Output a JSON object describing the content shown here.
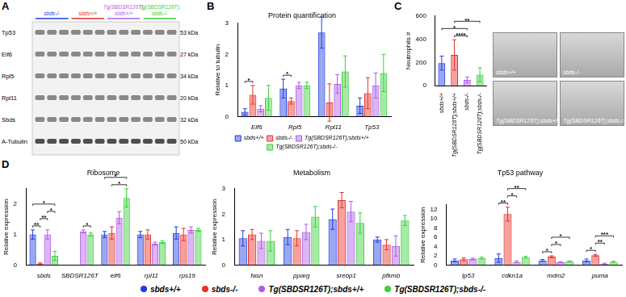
{
  "panel_labels": [
    "A",
    "B",
    "C",
    "D"
  ],
  "blot": {
    "groups": [
      {
        "label": "sbds-/-",
        "color": "#1f3ce0"
      },
      {
        "label": "sbds+/+",
        "color": "#e8312a"
      },
      {
        "label": "Tg(SBDSR126T);sbds+/+",
        "color": "#b05ce6"
      },
      {
        "label": "Tg(SBDSR126T);sbds-/-",
        "color": "#3ccf3c"
      }
    ],
    "rows": [
      {
        "protein": "Tp53",
        "size": "53 kDa"
      },
      {
        "protein": "Eif6",
        "size": "27 kDa"
      },
      {
        "protein": "Rpl5",
        "size": "34 kDa"
      },
      {
        "protein": "Rpl11",
        "size": "20 kDa"
      },
      {
        "protein": "Sbds",
        "size": "32 kDa"
      },
      {
        "protein": "A-Tubulin",
        "size": "50 kDa"
      }
    ]
  },
  "fish_images": {
    "labels": [
      "sbds+/+",
      "sbds-/-",
      "Tg(SBDSR126T);sbds+/+",
      "Tg(SBDSR126T);sbds-/-"
    ]
  },
  "chart_data": [
    {
      "type": "bar",
      "title": "Protein quantification",
      "y_label": "Relative to tubulin",
      "categories": [
        "Eif6",
        "Rpl5",
        "Rpl11",
        "Tp53"
      ],
      "series": [
        {
          "name": "sbds+/+",
          "color": "#1f3ce0",
          "values": [
            0.15,
            0.9,
            2.7,
            0.35
          ],
          "errors": [
            0.1,
            0.3,
            0.5,
            0.25
          ]
        },
        {
          "name": "sbds-/-",
          "color": "#e8312a",
          "values": [
            0.7,
            0.5,
            0.45,
            0.75
          ],
          "errors": [
            0.3,
            0.1,
            0.6,
            0.5
          ]
        },
        {
          "name": "Tg(SBDSR126T);sbds+/+",
          "color": "#b05ce6",
          "values": [
            0.25,
            1.0,
            1.05,
            1.0
          ],
          "errors": [
            0.1,
            0.1,
            0.3,
            0.4
          ]
        },
        {
          "name": "Tg(SBDSR126T);sbds-/-",
          "color": "#3ccf3c",
          "values": [
            0.6,
            1.0,
            1.45,
            1.4
          ],
          "errors": [
            0.4,
            0.1,
            0.5,
            0.6
          ]
        }
      ],
      "ylim": [
        0,
        3
      ],
      "yticks": [
        0,
        1,
        2,
        3
      ],
      "grid": false,
      "legend": "bottom",
      "significance": [
        {
          "category": "Eif6",
          "between": [
            "sbds+/+",
            "sbds-/-"
          ],
          "label": "*"
        },
        {
          "category": "Rpl5",
          "between": [
            "sbds+/+",
            "sbds-/-"
          ],
          "label": "*"
        }
      ]
    },
    {
      "type": "bar",
      "y_label": "Neutrophils #",
      "categories": [
        "sbds+/+",
        "Tg(SBDSR126T);sbds+/+",
        "sbds-/-",
        "Tg(SBDSR126T);sbds-/-"
      ],
      "values": [
        195,
        265,
        50,
        95
      ],
      "errors": [
        60,
        130,
        25,
        60
      ],
      "colors": [
        "#1f3ce0",
        "#e8312a",
        "#b05ce6",
        "#3ccf3c"
      ],
      "ylim": [
        0,
        600
      ],
      "yticks": [
        0,
        200,
        400,
        600
      ],
      "grid": false,
      "significance": [
        {
          "between": [
            "Tg(SBDSR126T);sbds+/+",
            "sbds-/-"
          ],
          "label": "****"
        },
        {
          "between": [
            "sbds+/+",
            "sbds-/-"
          ],
          "label": "*"
        },
        {
          "between": [
            "Tg(SBDSR126T);sbds+/+",
            "Tg(SBDSR126T);sbds-/-"
          ],
          "label": "**"
        }
      ]
    },
    {
      "type": "bar",
      "title": "Ribosome",
      "y_label": "Relative expression",
      "categories": [
        "sbds",
        "SBDSR126T",
        "eif6",
        "rpl11",
        "rps19"
      ],
      "series": [
        {
          "name": "sbds+/+",
          "color": "#1f3ce0",
          "values": [
            1.0,
            null,
            1.0,
            1.0,
            1.05
          ],
          "errors": [
            0.15,
            null,
            0.1,
            0.1,
            0.2
          ]
        },
        {
          "name": "sbds-/-",
          "color": "#e8312a",
          "values": [
            0.05,
            null,
            1.05,
            1.0,
            1.0
          ],
          "errors": [
            0.02,
            null,
            0.2,
            0.15,
            0.2
          ]
        },
        {
          "name": "Tg(SBDSR126T);sbds+/+",
          "color": "#b05ce6",
          "values": [
            1.0,
            1.1,
            1.55,
            0.7,
            1.15
          ],
          "errors": [
            0.15,
            0.05,
            0.2,
            0.05,
            0.1
          ]
        },
        {
          "name": "Tg(SBDSR126T);sbds-/-",
          "color": "#3ccf3c",
          "values": [
            0.3,
            1.0,
            2.2,
            0.75,
            1.15
          ],
          "errors": [
            0.15,
            0.05,
            0.3,
            0.05,
            0.05
          ]
        }
      ],
      "ylim": [
        0,
        2.5
      ],
      "yticks": [
        0,
        1,
        2
      ],
      "grid": false,
      "significance": [
        {
          "category": "sbds",
          "between": [
            "sbds+/+",
            "sbds-/-"
          ],
          "label": "**"
        },
        {
          "category": "sbds",
          "between": [
            "sbds-/-",
            "Tg(SBDSR126T);sbds+/+"
          ],
          "label": "**"
        },
        {
          "category": "sbds",
          "between": [
            "Tg(SBDSR126T);sbds+/+",
            "Tg(SBDSR126T);sbds-/-"
          ],
          "label": "*"
        },
        {
          "category": "sbds",
          "between": [
            "sbds+/+",
            "Tg(SBDSR126T);sbds-/-"
          ],
          "label": "*"
        },
        {
          "category": "SBDSR126T",
          "between": [
            "Tg(SBDSR126T);sbds+/+",
            "Tg(SBDSR126T);sbds-/-"
          ],
          "label": "*"
        },
        {
          "category": "eif6",
          "between": [
            "sbds-/-",
            "Tg(SBDSR126T);sbds-/-"
          ],
          "label": "*"
        },
        {
          "category": "eif6",
          "between": [
            "sbds+/+",
            "Tg(SBDSR126T);sbds-/-"
          ],
          "label": "*"
        }
      ]
    },
    {
      "type": "bar",
      "title": "Metabolism",
      "y_label": "Relative expression",
      "categories": [
        "fasn",
        "pparg",
        "srebp1",
        "pfkmb"
      ],
      "series": [
        {
          "name": "sbds+/+",
          "color": "#1f3ce0",
          "values": [
            1.05,
            1.1,
            1.8,
            1.0
          ],
          "errors": [
            0.3,
            0.3,
            0.4,
            0.1
          ]
        },
        {
          "name": "sbds-/-",
          "color": "#e8312a",
          "values": [
            1.2,
            1.05,
            2.55,
            0.8
          ],
          "errors": [
            0.2,
            0.3,
            0.3,
            0.2
          ]
        },
        {
          "name": "Tg(SBDSR126T);sbds+/+",
          "color": "#b05ce6",
          "values": [
            0.95,
            1.3,
            2.1,
            0.75
          ],
          "errors": [
            0.3,
            0.3,
            0.4,
            0.4
          ]
        },
        {
          "name": "Tg(SBDSR126T);sbds-/-",
          "color": "#3ccf3c",
          "values": [
            0.95,
            1.9,
            1.65,
            1.75
          ],
          "errors": [
            0.4,
            0.4,
            0.4,
            0.2
          ]
        }
      ],
      "ylim": [
        0,
        3
      ],
      "yticks": [
        0,
        1,
        2,
        3
      ],
      "grid": false
    },
    {
      "type": "bar",
      "title": "Tp53 pathway",
      "y_label": "Relative expression",
      "categories": [
        "tp53",
        "cdkn1a",
        "mdm2",
        "puma"
      ],
      "series": [
        {
          "name": "sbds+/+",
          "color": "#1f3ce0",
          "values": [
            1.0,
            1.5,
            1.0,
            1.0
          ],
          "errors": [
            0.3,
            0.9,
            0.2,
            0.3
          ]
        },
        {
          "name": "sbds-/-",
          "color": "#e8312a",
          "values": [
            1.25,
            11,
            1.8,
            2.1
          ],
          "errors": [
            0.3,
            1.5,
            0.2,
            0.2
          ]
        },
        {
          "name": "Tg(SBDSR126T);sbds+/+",
          "color": "#b05ce6",
          "values": [
            1.3,
            0.7,
            0.6,
            0.3
          ],
          "errors": [
            0.2,
            0.2,
            0.1,
            0.1
          ]
        },
        {
          "name": "Tg(SBDSR126T);sbds-/-",
          "color": "#3ccf3c",
          "values": [
            1.5,
            1.7,
            0.8,
            0.7
          ],
          "errors": [
            0.2,
            0.2,
            0.1,
            0.1
          ]
        }
      ],
      "ylim": [
        0,
        13
      ],
      "yticks": [
        0,
        2,
        4,
        6,
        8,
        10,
        12
      ],
      "grid": false,
      "significance": [
        {
          "category": "cdkn1a",
          "between": [
            "sbds+/+",
            "sbds-/-"
          ],
          "label": "**"
        },
        {
          "category": "cdkn1a",
          "between": [
            "sbds-/-",
            "Tg(SBDSR126T);sbds+/+"
          ],
          "label": "*"
        },
        {
          "category": "cdkn1a",
          "between": [
            "sbds-/-",
            "Tg(SBDSR126T);sbds-/-"
          ],
          "label": "**"
        },
        {
          "category": "mdm2",
          "between": [
            "sbds+/+",
            "sbds-/-"
          ],
          "label": "*"
        },
        {
          "category": "mdm2",
          "between": [
            "sbds-/-",
            "Tg(SBDSR126T);sbds+/+"
          ],
          "label": "*"
        },
        {
          "category": "mdm2",
          "between": [
            "sbds-/-",
            "Tg(SBDSR126T);sbds-/-"
          ],
          "label": "*"
        },
        {
          "category": "puma",
          "between": [
            "sbds+/+",
            "sbds-/-"
          ],
          "label": "*"
        },
        {
          "category": "puma",
          "between": [
            "sbds-/-",
            "Tg(SBDSR126T);sbds+/+"
          ],
          "label": "**"
        },
        {
          "category": "puma",
          "between": [
            "sbds-/-",
            "Tg(SBDSR126T);sbds-/-"
          ],
          "label": "***"
        }
      ]
    }
  ]
}
